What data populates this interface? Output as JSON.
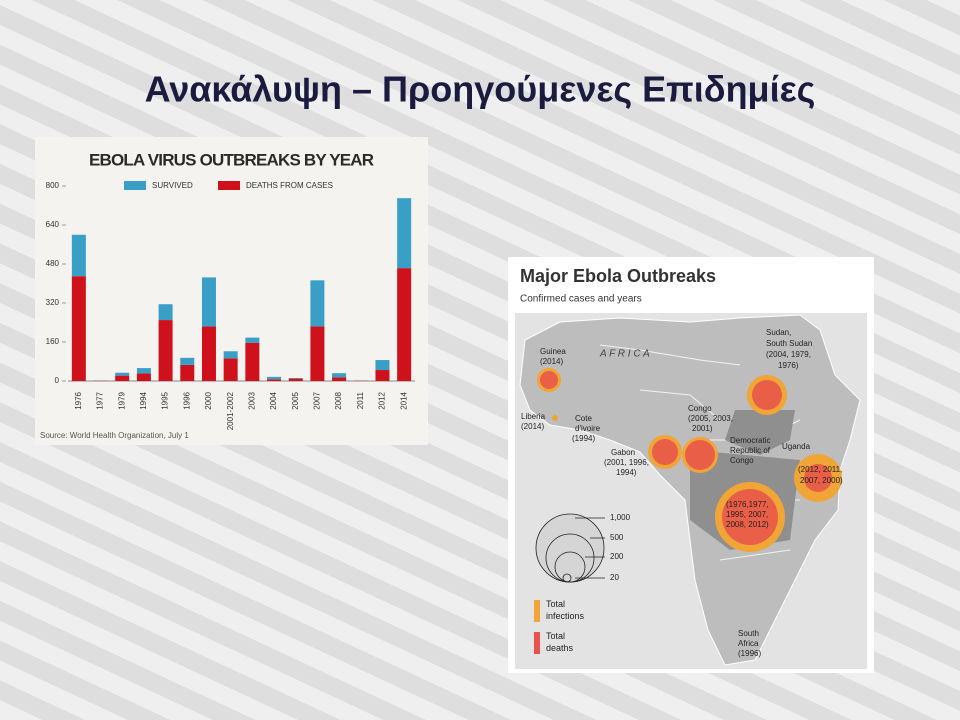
{
  "title": "Ανακάλυψη – Προηγούμενες Επιδημίες",
  "chart_data": {
    "type": "bar",
    "stacked": true,
    "title": "EBOLA VIRUS OUTBREAKS BY YEAR",
    "source": "Source: World Health Organization, July 1",
    "categories": [
      "1976",
      "1977",
      "1979",
      "1994",
      "1995",
      "1996",
      "2000",
      "2001-2002",
      "2003",
      "2004",
      "2005",
      "2007",
      "2008",
      "2011",
      "2012",
      "2014"
    ],
    "series": [
      {
        "name": "SURVIVED",
        "color": "#3a9fc6",
        "values": [
          170,
          0,
          12,
          22,
          65,
          29,
          201,
          29,
          21,
          10,
          2,
          189,
          17,
          0,
          41,
          287
        ]
      },
      {
        "name": "DEATHS FROM CASES",
        "color": "#cf111b",
        "values": [
          430,
          1,
          22,
          31,
          250,
          66,
          224,
          93,
          157,
          7,
          10,
          224,
          15,
          1,
          45,
          463
        ]
      }
    ],
    "ylim": [
      0,
      800
    ],
    "yticks": [
      0,
      160,
      320,
      480,
      640,
      800
    ],
    "grid": false
  },
  "map": {
    "title": "Major Ebola Outbreaks",
    "subtitle": "Confirmed cases and years",
    "region_label": "A F R I C A",
    "callouts": [
      {
        "lines": [
          "Guinea",
          "(2014)"
        ]
      },
      {
        "lines": [
          "Liberia",
          "(2014)"
        ]
      },
      {
        "lines": [
          "Cote",
          "d'ivoire",
          "(1994)"
        ]
      },
      {
        "lines": [
          "Gabon",
          "(2001, 1996,",
          "1994)"
        ]
      },
      {
        "lines": [
          "Congo",
          "(2005, 2003,",
          "2001)"
        ]
      },
      {
        "lines": [
          "Democratic",
          "Republic of",
          "Congo"
        ]
      },
      {
        "lines": [
          "Sudan,",
          "South Sudan",
          "(2004, 1979,",
          "1976)"
        ]
      },
      {
        "lines": [
          "Uganda"
        ]
      },
      {
        "lines": [
          "(2012, 2011,",
          "2007, 2000)"
        ]
      },
      {
        "lines": [
          "(1976,1977,",
          "1995, 2007,",
          "2008, 2012)"
        ]
      },
      {
        "lines": [
          "South",
          "Africa",
          "(1996)"
        ]
      }
    ],
    "size_legend": [
      "1,000",
      "500",
      "200",
      "20"
    ],
    "color_legend": [
      {
        "lines": [
          "Total",
          "infections"
        ]
      },
      {
        "lines": [
          "Total",
          "deaths"
        ]
      }
    ]
  }
}
